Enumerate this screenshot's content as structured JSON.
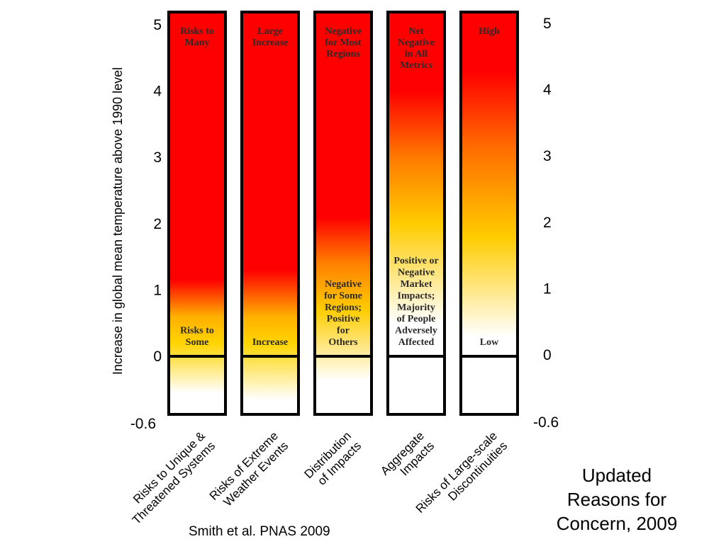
{
  "title_lines": [
    "Updated",
    "Reasons for",
    "Concern, 2009"
  ],
  "citation": "Smith et al. PNAS 2009",
  "chart_data": {
    "type": "bar",
    "ylabel": "Increase in global mean temperature above 1990 level",
    "ylim": [
      -0.6,
      5
    ],
    "yticks": [
      {
        "value": 5,
        "label": "5"
      },
      {
        "value": 4,
        "label": "4"
      },
      {
        "value": 3,
        "label": "3"
      },
      {
        "value": 2,
        "label": "2"
      },
      {
        "value": 1,
        "label": "1"
      },
      {
        "value": 0,
        "label": "0"
      },
      {
        "value": -0.6,
        "label": "-0.6"
      }
    ],
    "categories": [
      {
        "name_lines": [
          "Risks to Unique &",
          "Threatened Systems"
        ],
        "top_label": [
          "Risks to",
          "Many"
        ],
        "bottom_label": [
          "Risks to",
          "Some"
        ],
        "gradient": [
          {
            "t": -0.6,
            "color": "#ffffff"
          },
          {
            "t": -0.38,
            "color": "#ffffff"
          },
          {
            "t": 0.2,
            "color": "#ffd400"
          },
          {
            "t": 0.6,
            "color": "#ffb000"
          },
          {
            "t": 1.15,
            "color": "#ff0000"
          },
          {
            "t": 5,
            "color": "#ff0000"
          }
        ]
      },
      {
        "name_lines": [
          "Risks of Extreme",
          "Weather Events"
        ],
        "top_label": [
          "Large",
          "Increase"
        ],
        "bottom_label": [
          "Increase"
        ],
        "gradient": [
          {
            "t": -0.6,
            "color": "#ffffff"
          },
          {
            "t": -0.45,
            "color": "#ffffff"
          },
          {
            "t": 0.2,
            "color": "#ffd400"
          },
          {
            "t": 0.6,
            "color": "#ffb000"
          },
          {
            "t": 1.3,
            "color": "#ff0000"
          },
          {
            "t": 5,
            "color": "#ff0000"
          }
        ]
      },
      {
        "name_lines": [
          "Distribution",
          "of Impacts"
        ],
        "top_label": [
          "Negative",
          "for Most",
          "Regions"
        ],
        "bottom_label": [
          "Negative",
          "for Some",
          "Regions;",
          "Positive",
          "for",
          "Others"
        ],
        "gradient": [
          {
            "t": -0.6,
            "color": "#ffffff"
          },
          {
            "t": -0.25,
            "color": "#ffffff"
          },
          {
            "t": 0.7,
            "color": "#ffcc00"
          },
          {
            "t": 1.4,
            "color": "#ff8000"
          },
          {
            "t": 2.1,
            "color": "#ff0000"
          },
          {
            "t": 5,
            "color": "#ff0000"
          }
        ]
      },
      {
        "name_lines": [
          "Aggregate",
          "Impacts"
        ],
        "top_label": [
          "Net",
          "Negative",
          "in All",
          "Metrics"
        ],
        "bottom_label": [
          "Positive or",
          "Negative",
          "Market",
          "Impacts;",
          "Majority",
          "of People",
          "Adversely",
          "Affected"
        ],
        "gradient": [
          {
            "t": -0.6,
            "color": "#ffffff"
          },
          {
            "t": 0.5,
            "color": "#ffffff"
          },
          {
            "t": 2.0,
            "color": "#ffcc00"
          },
          {
            "t": 3.0,
            "color": "#ff7a00"
          },
          {
            "t": 4.0,
            "color": "#ff0000"
          },
          {
            "t": 5,
            "color": "#ff0000"
          }
        ]
      },
      {
        "name_lines": [
          "Risks of Large-scale",
          "Discontinuities"
        ],
        "top_label": [
          "High"
        ],
        "bottom_label": [
          "Low"
        ],
        "gradient": [
          {
            "t": -0.6,
            "color": "#ffffff"
          },
          {
            "t": 0.3,
            "color": "#ffffff"
          },
          {
            "t": 1.8,
            "color": "#ffcc00"
          },
          {
            "t": 3.1,
            "color": "#ff7000"
          },
          {
            "t": 4.3,
            "color": "#ff0000"
          },
          {
            "t": 5,
            "color": "#ff0000"
          }
        ]
      }
    ]
  }
}
